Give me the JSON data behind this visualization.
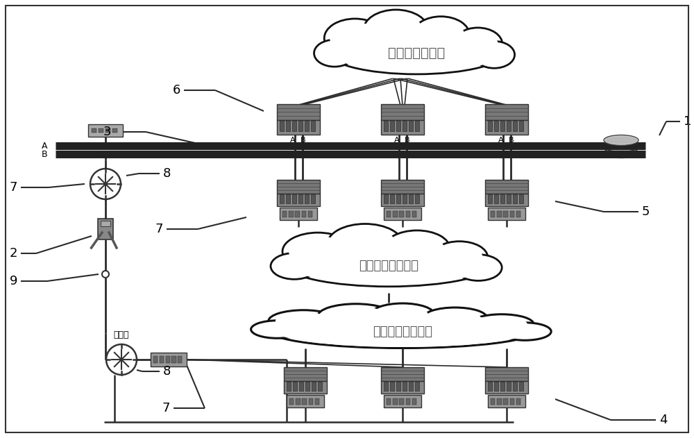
{
  "bg_color": "#ffffff",
  "cloud1_text": "调度自动化系统",
  "cloud2_text": "调度数据网集控侧",
  "cloud3_text": "调度数据网厂站侧",
  "router_text": "路由器",
  "label1": "1",
  "label2": "2",
  "label3": "3",
  "label4": "4",
  "label5": "5",
  "label6": "6",
  "label7": "7",
  "label8": "8",
  "label9": "9",
  "line_color": "#2a2a2a",
  "bus_color": "#1a1a1a",
  "cloud_edge": "#111111",
  "rack_fill": "#909090",
  "rack_dark": "#505050",
  "rack_edge": "#333333",
  "router_fill": "#ffffff",
  "switch_fill": "#aaaaaa"
}
